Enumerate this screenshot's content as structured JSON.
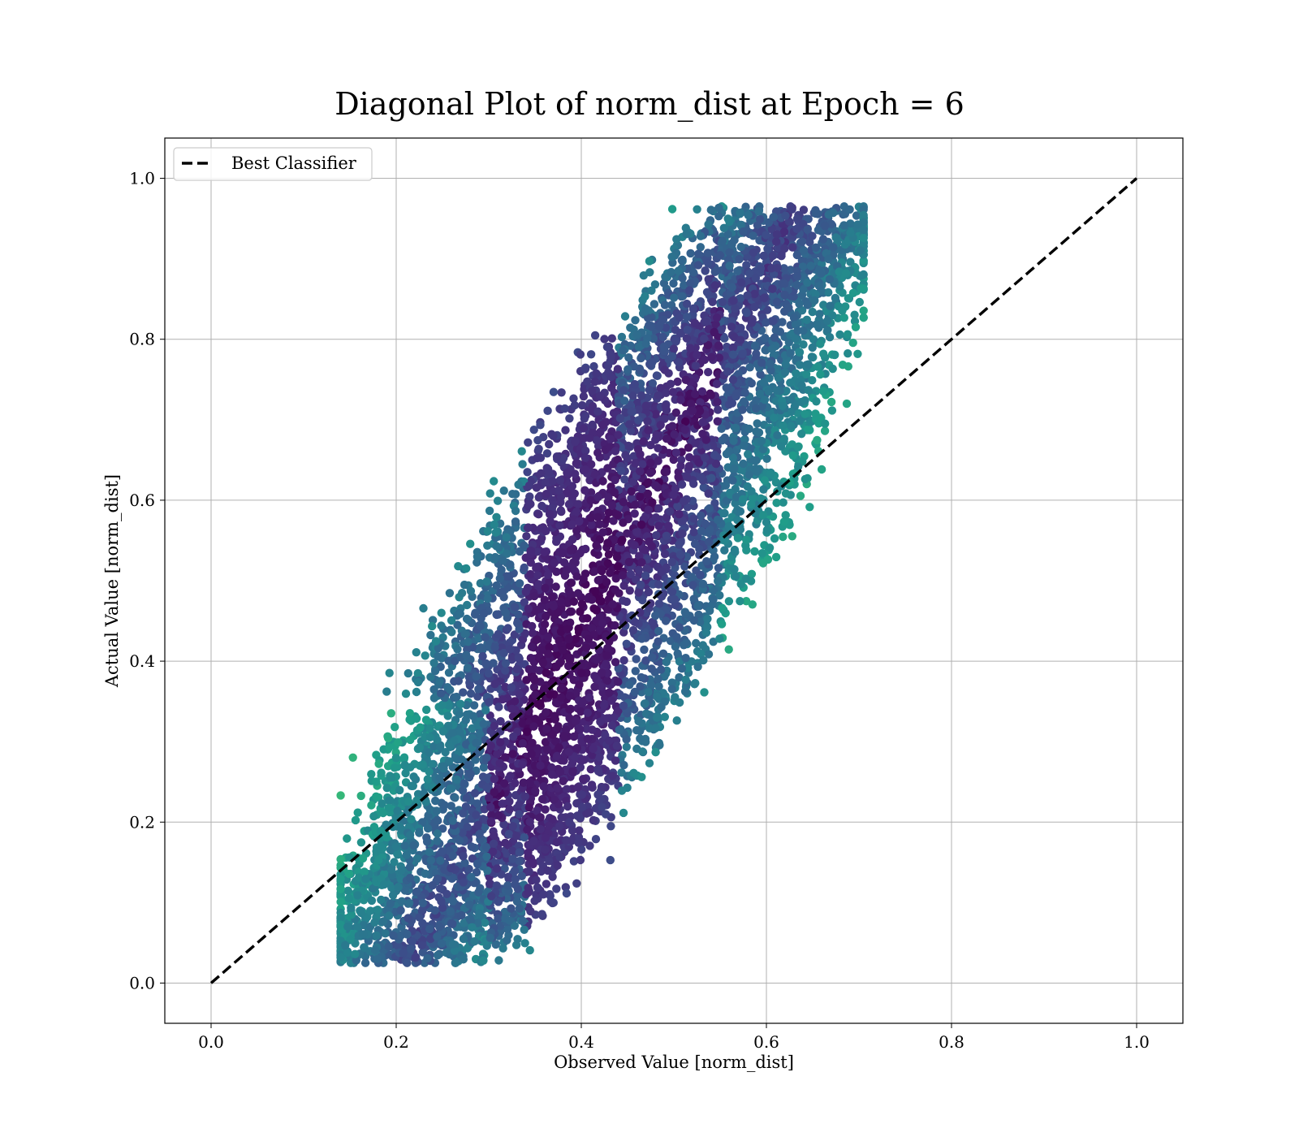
{
  "chart_data": {
    "type": "scatter",
    "title": "Diagonal Plot of norm_dist at Epoch = 6",
    "xlabel": "Observed Value [norm_dist]",
    "ylabel": "Actual Value [norm_dist]",
    "xlim": [
      -0.05,
      1.05
    ],
    "ylim": [
      -0.05,
      1.05
    ],
    "xticks": [
      0.0,
      0.2,
      0.4,
      0.6,
      0.8,
      1.0
    ],
    "yticks": [
      0.0,
      0.2,
      0.4,
      0.6,
      0.8,
      1.0
    ],
    "xtick_labels": [
      "0.0",
      "0.2",
      "0.4",
      "0.6",
      "0.8",
      "1.0"
    ],
    "ytick_labels": [
      "0.0",
      "0.2",
      "0.4",
      "0.6",
      "0.8",
      "1.0"
    ],
    "grid": true,
    "legend": {
      "placement": "upper left",
      "entries": [
        "Best Classifier"
      ]
    },
    "reference_line": {
      "name": "Best Classifier",
      "style": "dashed",
      "color": "#000000",
      "points": [
        [
          0.0,
          0.0
        ],
        [
          1.0,
          1.0
        ]
      ]
    },
    "scatter_colormap": "viridis",
    "point_color_range": [
      "#440154",
      "#3b528b",
      "#21918c",
      "#5ec962"
    ],
    "scatter_cloud": {
      "x_range": [
        0.14,
        0.71
      ],
      "y_range": [
        0.02,
        0.97
      ],
      "approx_point_count": 6000
    }
  }
}
